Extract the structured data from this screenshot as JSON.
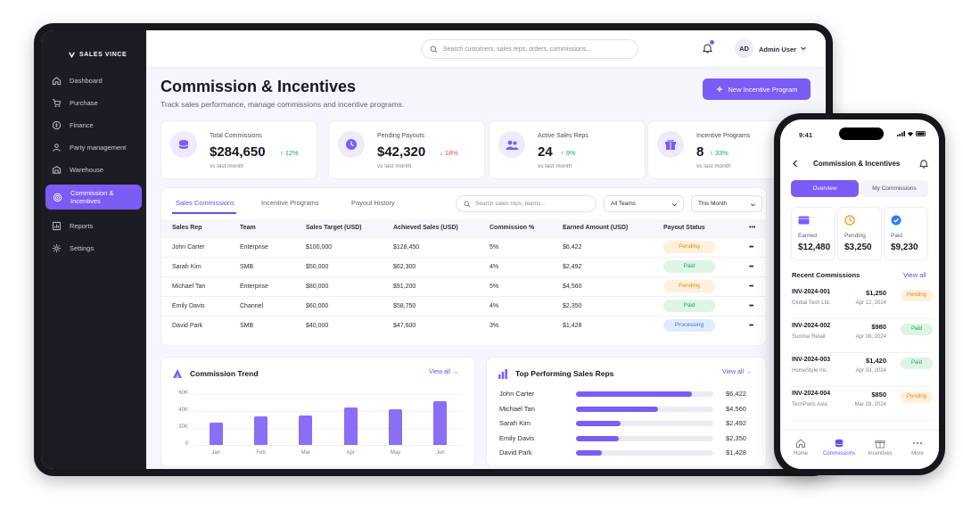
{
  "brand": {
    "name": "SALES VINCE"
  },
  "sidebar": {
    "items": [
      {
        "label": "Dashboard",
        "icon": "home-icon"
      },
      {
        "label": "Purchase",
        "icon": "cart-icon"
      },
      {
        "label": "Finance",
        "icon": "coin-icon"
      },
      {
        "label": "Party management",
        "icon": "party-icon"
      },
      {
        "label": "Warehouse",
        "icon": "warehouse-icon"
      },
      {
        "label": "Commission & Incentives",
        "icon": "target-icon",
        "active": true
      },
      {
        "label": "Reports",
        "icon": "chart-icon"
      },
      {
        "label": "Settings",
        "icon": "gear-icon"
      }
    ]
  },
  "topbar": {
    "search_placeholder": "Search customers, sales reps, orders, commissions...",
    "avatar_initials": "AD",
    "user_name": "Admin User"
  },
  "page": {
    "title": "Commission & Incentives",
    "subtitle": "Track sales performance, manage commissions and incentive programs.",
    "new_button": "New Incentive Program"
  },
  "kpis": [
    {
      "label": "Total Commissions",
      "value": "$284,650",
      "change": "12%",
      "direction": "up",
      "note": "vs last month"
    },
    {
      "label": "Pending Payouts",
      "value": "$42,320",
      "change": "18%",
      "direction": "down",
      "note": "vs last month"
    },
    {
      "label": "Active Sales Reps",
      "value": "24",
      "change": "9%",
      "direction": "up",
      "note": "vs last month"
    },
    {
      "label": "Incentive Programs",
      "value": "8",
      "change": "33%",
      "direction": "up",
      "note": "vs last month"
    }
  ],
  "tabs": [
    "Sales Commissions",
    "Incentive Programs",
    "Payout History"
  ],
  "table_search_placeholder": "Search sales reps, teams...",
  "filters": {
    "team": "All Teams",
    "period": "This Month"
  },
  "table": {
    "headers": [
      "Sales Rep",
      "Team",
      "Sales Target (USD)",
      "Achieved Sales (USD)",
      "Commission %",
      "Earned Amount (USD)",
      "Payout Status",
      "•••"
    ],
    "rows": [
      {
        "rep": "John Carter",
        "team": "Enterprise",
        "target": "$100,000",
        "achieved": "$128,450",
        "pct": "5%",
        "earned": "$6,422",
        "status": "Pending"
      },
      {
        "rep": "Sarah Kim",
        "team": "SMB",
        "target": "$50,000",
        "achieved": "$62,300",
        "pct": "4%",
        "earned": "$2,492",
        "status": "Paid"
      },
      {
        "rep": "Michael Tan",
        "team": "Enterprise",
        "target": "$80,000",
        "achieved": "$91,200",
        "pct": "5%",
        "earned": "$4,560",
        "status": "Pending"
      },
      {
        "rep": "Emily Davis",
        "team": "Channel",
        "target": "$60,000",
        "achieved": "$58,750",
        "pct": "4%",
        "earned": "$2,350",
        "status": "Paid"
      },
      {
        "rep": "David Park",
        "team": "SMB",
        "target": "$40,000",
        "achieved": "$47,600",
        "pct": "3%",
        "earned": "$1,428",
        "status": "Processing"
      }
    ]
  },
  "trend_card": {
    "title": "Commission Trend",
    "view_all": "View all →"
  },
  "top_card": {
    "title": "Top Performing Sales Reps",
    "view_all": "View all →"
  },
  "chart_data": [
    {
      "type": "bar",
      "title": "Commission Trend",
      "categories": [
        "Jan",
        "Feb",
        "Mar",
        "Apr",
        "May",
        "Jun"
      ],
      "values": [
        26000,
        34000,
        35000,
        44000,
        42000,
        52000
      ],
      "yticks": [
        "60K",
        "40K",
        "20K",
        "0"
      ],
      "ylim": [
        0,
        60000
      ],
      "grid": true
    },
    {
      "type": "bar",
      "orientation": "horizontal",
      "title": "Top Performing Sales Reps",
      "categories": [
        "John Carter",
        "Michael Tan",
        "Sarah Kim",
        "Emily Davis",
        "David Park"
      ],
      "values": [
        6422,
        4560,
        2492,
        2350,
        1428
      ],
      "labels": [
        "$6,422",
        "$4,560",
        "$2,492",
        "$2,350",
        "$1,428"
      ],
      "xlim": [
        0,
        7600
      ]
    }
  ],
  "phone": {
    "time": "9:41",
    "title": "Commission & Incentives",
    "segments": [
      "Overview",
      "My Commissions"
    ],
    "stats": [
      {
        "label": "Earned",
        "value": "$12,480",
        "icon": "wallet-icon"
      },
      {
        "label": "Pending",
        "value": "$3,250",
        "icon": "clock-icon"
      },
      {
        "label": "Paid",
        "value": "$9,230",
        "icon": "check-circle-icon"
      }
    ],
    "recent_title": "Recent Commissions",
    "recent_view_all": "View all",
    "recent": [
      {
        "id": "INV-2024-001",
        "company": "Global Tech Ltd.",
        "amount": "$1,250",
        "date": "Apr 12, 2024",
        "status": "Pending"
      },
      {
        "id": "INV-2024-002",
        "company": "Sunrise Retail",
        "amount": "$980",
        "date": "Apr 08, 2024",
        "status": "Paid"
      },
      {
        "id": "INV-2024-003",
        "company": "HomeStyle Inc.",
        "amount": "$1,420",
        "date": "Apr 03, 2024",
        "status": "Paid"
      },
      {
        "id": "INV-2024-004",
        "company": "TechParts Asia",
        "amount": "$850",
        "date": "Mar 28, 2024",
        "status": "Pending"
      }
    ],
    "nav": [
      "Home",
      "Commissions",
      "Incentives",
      "More"
    ]
  },
  "colors": {
    "accent": "#7b5cf5",
    "sidebar": "#1c1d24",
    "up": "#1ea75c",
    "down": "#e5484d"
  }
}
